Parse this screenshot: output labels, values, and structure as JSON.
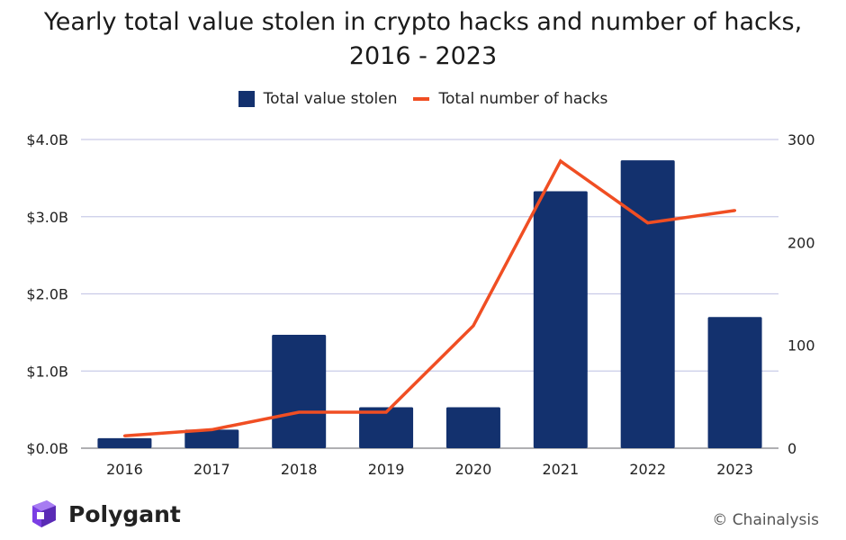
{
  "title_line1": "Yearly total value stolen in crypto hacks and number of hacks,",
  "title_line2": "2016 - 2023",
  "legend": {
    "bar_label": "Total value stolen",
    "line_label": "Total number of hacks"
  },
  "brand": {
    "name": "Polygant"
  },
  "credit": "© Chainalysis",
  "colors": {
    "bar": "#13316e",
    "line": "#f04e23",
    "grid": "#c9cbe8",
    "brand": "#7b3fe4"
  },
  "chart_data": {
    "type": "bar",
    "title": "Yearly total value stolen in crypto hacks and number of hacks, 2016 - 2023",
    "categories": [
      "2016",
      "2017",
      "2018",
      "2019",
      "2020",
      "2021",
      "2022",
      "2023"
    ],
    "series": [
      {
        "name": "Total value stolen",
        "type": "bar",
        "axis": "left",
        "unit": "billions USD",
        "values": [
          0.13,
          0.24,
          1.47,
          0.53,
          0.53,
          3.33,
          3.73,
          1.7
        ]
      },
      {
        "name": "Total number of hacks",
        "type": "line",
        "axis": "right",
        "values": [
          12,
          18,
          35,
          35,
          119,
          279,
          219,
          231
        ]
      }
    ],
    "y_left": {
      "ylim": [
        0,
        4
      ],
      "ticks": [
        0,
        1,
        2,
        3,
        4
      ],
      "tick_labels": [
        "$0.0B",
        "$1.0B",
        "$2.0B",
        "$3.0B",
        "$4.0B"
      ]
    },
    "y_right": {
      "ylim": [
        0,
        300
      ],
      "ticks": [
        0,
        100,
        200,
        300
      ],
      "tick_labels": [
        "0",
        "100",
        "200",
        "300"
      ]
    },
    "grid": true,
    "legend_position": "top-center"
  }
}
